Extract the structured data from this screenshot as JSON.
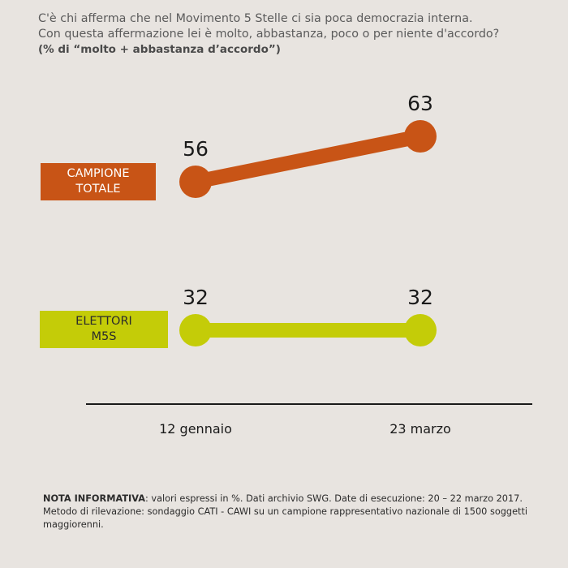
{
  "header": {
    "line1": "C'è chi afferma che nel Movimento 5 Stelle ci sia poca democrazia interna.",
    "line2": "Con questa affermazione lei è molto, abbastanza, poco o per niente d'accordo?",
    "subtitle": "(% di “molto + abbastanza d’accordo”)"
  },
  "colors": {
    "campione_totale": "#c85416",
    "elettori_m5s": "#c4cc08",
    "axis": "#1a1a1a",
    "background": "#e8e4e0"
  },
  "chart_data": {
    "type": "line",
    "categories": [
      "12 gennaio",
      "23 marzo"
    ],
    "series": [
      {
        "name": "CAMPIONE TOTALE",
        "values": [
          56,
          63
        ]
      },
      {
        "name": "ELETTORI M5S",
        "values": [
          32,
          32
        ]
      }
    ],
    "legend": {
      "total_line1": "CAMPIONE",
      "total_line2": "TOTALE",
      "m5s_line1": "ELETTORI",
      "m5s_line2": "M5S"
    },
    "legend_placement": "left",
    "grid": false
  },
  "note": {
    "label": "NOTA INFORMATIVA",
    "text": ": valori espressi in %. Dati archivio SWG. Date di esecuzione: 20 – 22 marzo 2017. Metodo di rilevazione: sondaggio CATI - CAWI su un campione rappresentativo nazionale di 1500 soggetti maggiorenni."
  }
}
